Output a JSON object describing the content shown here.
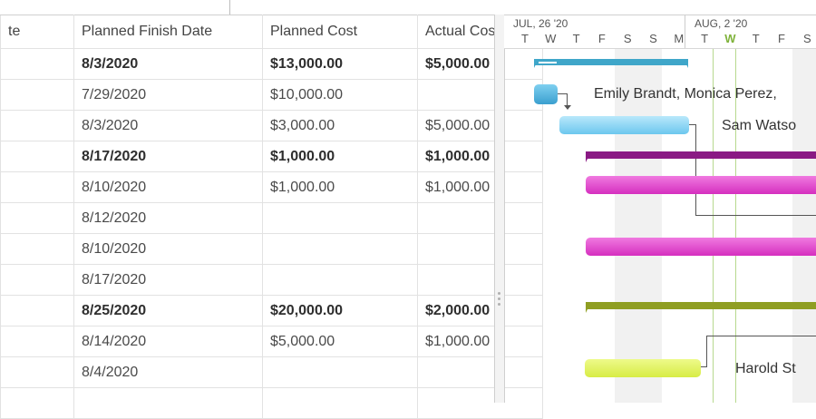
{
  "grid": {
    "columns": [
      "te",
      "Planned Finish Date",
      "Planned Cost",
      "Actual Cost"
    ],
    "rows": [
      {
        "finish": "8/3/2020",
        "planned": "$13,000.00",
        "actual": "$5,000.00",
        "bold": true
      },
      {
        "finish": "7/29/2020",
        "planned": "$10,000.00",
        "actual": "",
        "bold": false
      },
      {
        "finish": "8/3/2020",
        "planned": "$3,000.00",
        "actual": "$5,000.00",
        "bold": false
      },
      {
        "finish": "8/17/2020",
        "planned": "$1,000.00",
        "actual": "$1,000.00",
        "bold": true
      },
      {
        "finish": "8/10/2020",
        "planned": "$1,000.00",
        "actual": "$1,000.00",
        "bold": false
      },
      {
        "finish": "8/12/2020",
        "planned": "",
        "actual": "",
        "bold": false
      },
      {
        "finish": "8/10/2020",
        "planned": "",
        "actual": "",
        "bold": false
      },
      {
        "finish": "8/17/2020",
        "planned": "",
        "actual": "",
        "bold": false
      },
      {
        "finish": "8/25/2020",
        "planned": "$20,000.00",
        "actual": "$2,000.00",
        "bold": true
      },
      {
        "finish": "8/14/2020",
        "planned": "$5,000.00",
        "actual": "$1,000.00",
        "bold": false
      },
      {
        "finish": "8/4/2020",
        "planned": "",
        "actual": "",
        "bold": false
      },
      {
        "finish": "",
        "planned": "",
        "actual": "",
        "bold": false
      }
    ]
  },
  "gantt": {
    "weeks": [
      "JUL, 26 '20",
      "AUG, 2 '20"
    ],
    "days": [
      "T",
      "W",
      "T",
      "F",
      "S",
      "S",
      "M",
      "T",
      "W",
      "T",
      "F",
      "S"
    ],
    "today_day_index": 8,
    "labels": {
      "row1": "Emily Brandt, Monica Perez,",
      "row2": "Sam Watso",
      "row10": "Harold St"
    },
    "colors": {
      "summary_blue": "#3fa6c9",
      "task_blue": "#5fbde6",
      "task_lightblue": "#8fd6f5",
      "summary_purple": "#8a1a84",
      "task_magenta": "#e03fc9",
      "summary_olive": "#8f9e22",
      "task_lime": "#dff15c",
      "today_green": "#7fb23a"
    }
  }
}
